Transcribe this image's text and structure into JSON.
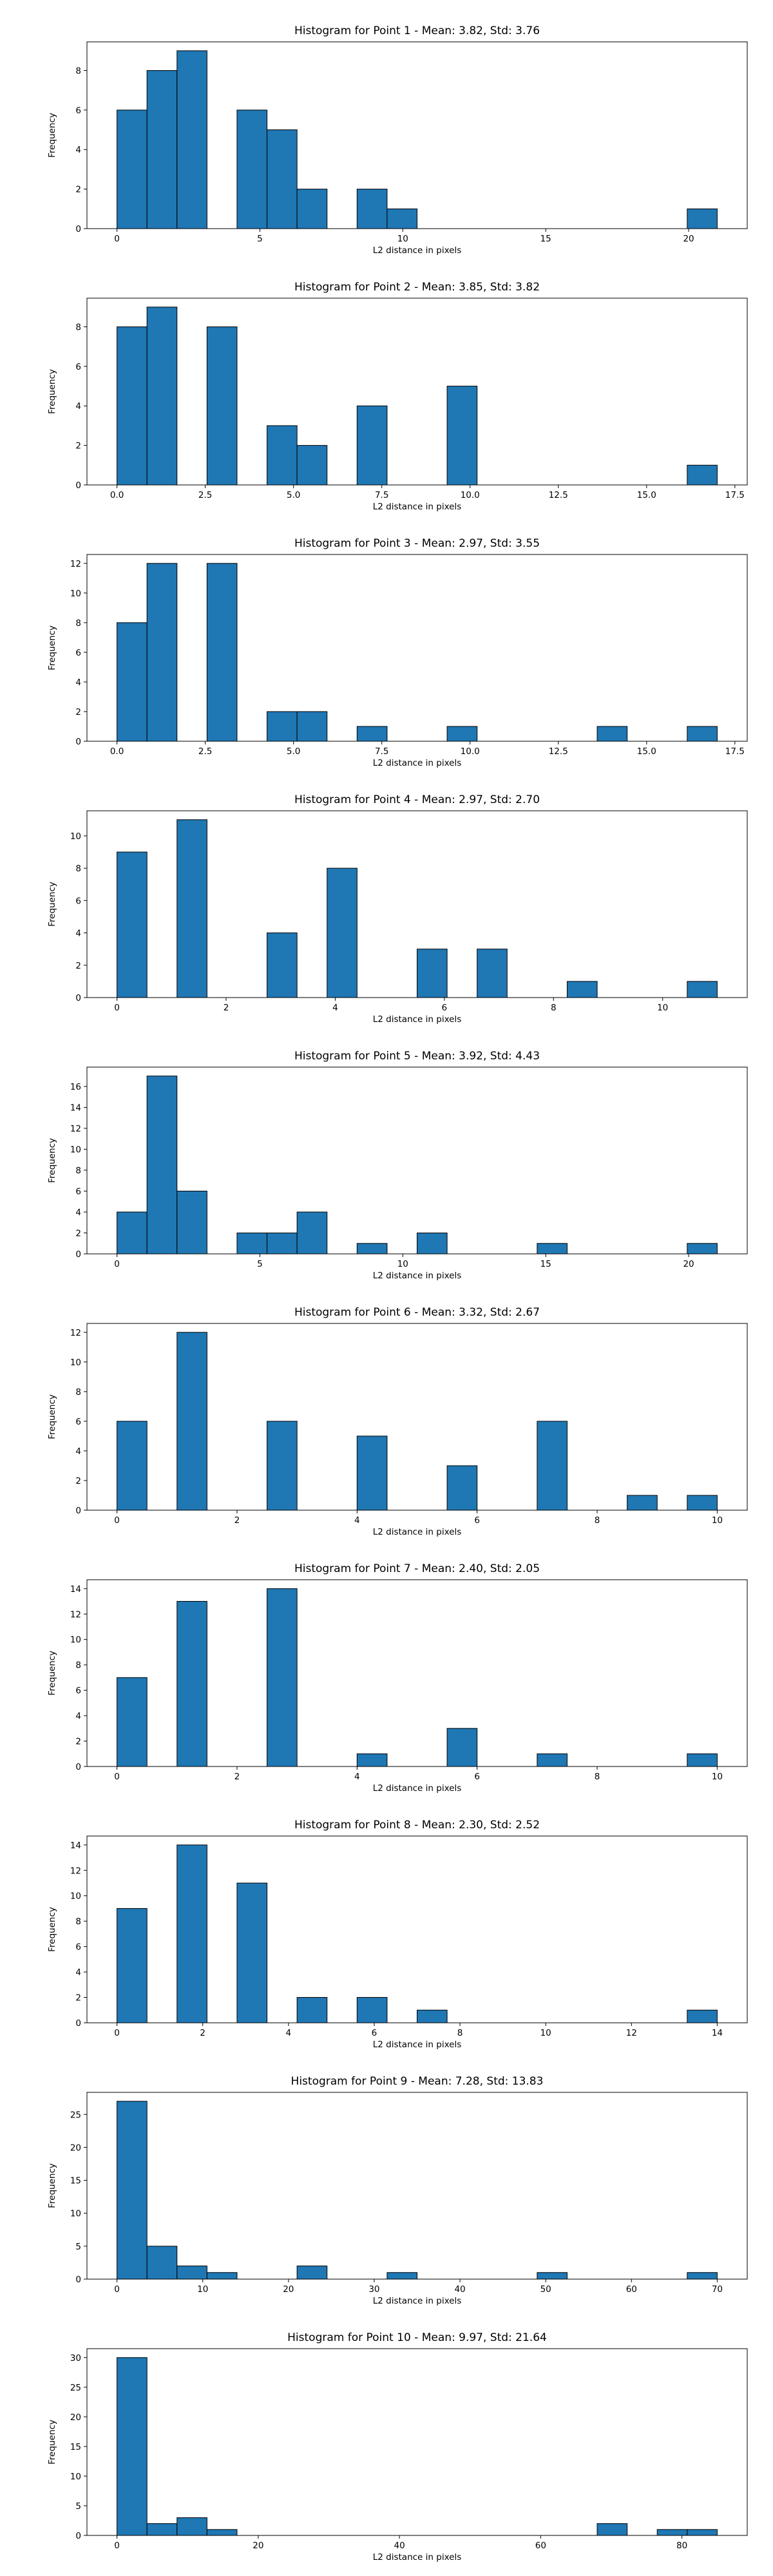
{
  "chart_data": [
    {
      "type": "bar",
      "title": "Histogram for Point 1 - Mean: 3.82, Std: 3.76",
      "xlabel": "L2 distance in pixels",
      "ylabel": "Frequency",
      "xlim": [
        -1.05,
        22.05
      ],
      "ylim": [
        0,
        9.45
      ],
      "xticks": [
        "0",
        "5",
        "10",
        "15",
        "20"
      ],
      "xtick_values": [
        0,
        5,
        10,
        15,
        20
      ],
      "yticks": [
        "0",
        "2",
        "4",
        "6",
        "8"
      ],
      "ytick_values": [
        0,
        2,
        4,
        6,
        8
      ],
      "bins": [
        [
          0,
          1.05,
          6
        ],
        [
          1.05,
          2.1,
          8
        ],
        [
          2.1,
          3.15,
          9
        ],
        [
          4.2,
          5.25,
          6
        ],
        [
          5.25,
          6.3,
          5
        ],
        [
          6.3,
          7.35,
          2
        ],
        [
          8.4,
          9.45,
          2
        ],
        [
          9.45,
          10.5,
          1
        ],
        [
          19.95,
          21.0,
          1
        ]
      ]
    },
    {
      "type": "bar",
      "title": "Histogram for Point 2 - Mean: 3.85, Std: 3.82",
      "xlabel": "L2 distance in pixels",
      "ylabel": "Frequency",
      "xlim": [
        -0.85,
        17.85
      ],
      "ylim": [
        0,
        9.45
      ],
      "xticks": [
        "0.0",
        "2.5",
        "5.0",
        "7.5",
        "10.0",
        "12.5",
        "15.0",
        "17.5"
      ],
      "xtick_values": [
        0,
        2.5,
        5,
        7.5,
        10,
        12.5,
        15,
        17.5
      ],
      "yticks": [
        "0",
        "2",
        "4",
        "6",
        "8"
      ],
      "ytick_values": [
        0,
        2,
        4,
        6,
        8
      ],
      "bins": [
        [
          0,
          0.85,
          8
        ],
        [
          0.85,
          1.7,
          9
        ],
        [
          2.55,
          3.4,
          8
        ],
        [
          4.25,
          5.1,
          3
        ],
        [
          5.1,
          5.95,
          2
        ],
        [
          6.8,
          7.65,
          4
        ],
        [
          9.35,
          10.2,
          5
        ],
        [
          16.15,
          17.0,
          1
        ]
      ]
    },
    {
      "type": "bar",
      "title": "Histogram for Point 3 - Mean: 2.97, Std: 3.55",
      "xlabel": "L2 distance in pixels",
      "ylabel": "Frequency",
      "xlim": [
        -0.85,
        17.85
      ],
      "ylim": [
        0,
        12.6
      ],
      "xticks": [
        "0.0",
        "2.5",
        "5.0",
        "7.5",
        "10.0",
        "12.5",
        "15.0",
        "17.5"
      ],
      "xtick_values": [
        0,
        2.5,
        5,
        7.5,
        10,
        12.5,
        15,
        17.5
      ],
      "yticks": [
        "0",
        "2",
        "4",
        "6",
        "8",
        "10",
        "12"
      ],
      "ytick_values": [
        0,
        2,
        4,
        6,
        8,
        10,
        12
      ],
      "bins": [
        [
          0,
          0.85,
          8
        ],
        [
          0.85,
          1.7,
          12
        ],
        [
          2.55,
          3.4,
          12
        ],
        [
          4.25,
          5.1,
          2
        ],
        [
          5.1,
          5.95,
          2
        ],
        [
          6.8,
          7.65,
          1
        ],
        [
          9.35,
          10.2,
          1
        ],
        [
          13.6,
          14.45,
          1
        ],
        [
          16.15,
          17.0,
          1
        ]
      ]
    },
    {
      "type": "bar",
      "title": "Histogram for Point 4 - Mean: 2.97, Std: 2.70",
      "xlabel": "L2 distance in pixels",
      "ylabel": "Frequency",
      "xlim": [
        -0.55,
        11.55
      ],
      "ylim": [
        0,
        11.55
      ],
      "xticks": [
        "0",
        "2",
        "4",
        "6",
        "8",
        "10"
      ],
      "xtick_values": [
        0,
        2,
        4,
        6,
        8,
        10
      ],
      "yticks": [
        "0",
        "2",
        "4",
        "6",
        "8",
        "10"
      ],
      "ytick_values": [
        0,
        2,
        4,
        6,
        8,
        10
      ],
      "bins": [
        [
          0,
          0.55,
          9
        ],
        [
          1.1,
          1.65,
          11
        ],
        [
          2.75,
          3.3,
          4
        ],
        [
          3.85,
          4.4,
          8
        ],
        [
          5.5,
          6.05,
          3
        ],
        [
          6.6,
          7.15,
          3
        ],
        [
          8.25,
          8.8,
          1
        ],
        [
          10.45,
          11.0,
          1
        ]
      ]
    },
    {
      "type": "bar",
      "title": "Histogram for Point 5 - Mean: 3.92, Std: 4.43",
      "xlabel": "L2 distance in pixels",
      "ylabel": "Frequency",
      "xlim": [
        -1.05,
        22.05
      ],
      "ylim": [
        0,
        17.85
      ],
      "xticks": [
        "0",
        "5",
        "10",
        "15",
        "20"
      ],
      "xtick_values": [
        0,
        5,
        10,
        15,
        20
      ],
      "yticks": [
        "0",
        "2",
        "4",
        "6",
        "8",
        "10",
        "12",
        "14",
        "16"
      ],
      "ytick_values": [
        0,
        2,
        4,
        6,
        8,
        10,
        12,
        14,
        16
      ],
      "bins": [
        [
          0,
          1.05,
          4
        ],
        [
          1.05,
          2.1,
          17
        ],
        [
          2.1,
          3.15,
          6
        ],
        [
          4.2,
          5.25,
          2
        ],
        [
          5.25,
          6.3,
          2
        ],
        [
          6.3,
          7.35,
          4
        ],
        [
          8.4,
          9.45,
          1
        ],
        [
          10.5,
          11.55,
          2
        ],
        [
          14.7,
          15.75,
          1
        ],
        [
          19.95,
          21.0,
          1
        ]
      ]
    },
    {
      "type": "bar",
      "title": "Histogram for Point 6 - Mean: 3.32, Std: 2.67",
      "xlabel": "L2 distance in pixels",
      "ylabel": "Frequency",
      "xlim": [
        -0.5,
        10.5
      ],
      "ylim": [
        0,
        12.6
      ],
      "xticks": [
        "0",
        "2",
        "4",
        "6",
        "8",
        "10"
      ],
      "xtick_values": [
        0,
        2,
        4,
        6,
        8,
        10
      ],
      "yticks": [
        "0",
        "2",
        "4",
        "6",
        "8",
        "10",
        "12"
      ],
      "ytick_values": [
        0,
        2,
        4,
        6,
        8,
        10,
        12
      ],
      "bins": [
        [
          0,
          0.5,
          6
        ],
        [
          1.0,
          1.5,
          12
        ],
        [
          2.5,
          3.0,
          6
        ],
        [
          4.0,
          4.5,
          5
        ],
        [
          5.5,
          6.0,
          3
        ],
        [
          7.0,
          7.5,
          6
        ],
        [
          8.5,
          9.0,
          1
        ],
        [
          9.5,
          10.0,
          1
        ]
      ]
    },
    {
      "type": "bar",
      "title": "Histogram for Point 7 - Mean: 2.40, Std: 2.05",
      "xlabel": "L2 distance in pixels",
      "ylabel": "Frequency",
      "xlim": [
        -0.5,
        10.5
      ],
      "ylim": [
        0,
        14.7
      ],
      "xticks": [
        "0",
        "2",
        "4",
        "6",
        "8",
        "10"
      ],
      "xtick_values": [
        0,
        2,
        4,
        6,
        8,
        10
      ],
      "yticks": [
        "0",
        "2",
        "4",
        "6",
        "8",
        "10",
        "12",
        "14"
      ],
      "ytick_values": [
        0,
        2,
        4,
        6,
        8,
        10,
        12,
        14
      ],
      "bins": [
        [
          0,
          0.5,
          7
        ],
        [
          1.0,
          1.5,
          13
        ],
        [
          2.5,
          3.0,
          14
        ],
        [
          4.0,
          4.5,
          1
        ],
        [
          5.5,
          6.0,
          3
        ],
        [
          7.0,
          7.5,
          1
        ],
        [
          9.5,
          10.0,
          1
        ]
      ]
    },
    {
      "type": "bar",
      "title": "Histogram for Point 8 - Mean: 2.30, Std: 2.52",
      "xlabel": "L2 distance in pixels",
      "ylabel": "Frequency",
      "xlim": [
        -0.7,
        14.7
      ],
      "ylim": [
        0,
        14.7
      ],
      "xticks": [
        "0",
        "2",
        "4",
        "6",
        "8",
        "10",
        "12",
        "14"
      ],
      "xtick_values": [
        0,
        2,
        4,
        6,
        8,
        10,
        12,
        14
      ],
      "yticks": [
        "0",
        "2",
        "4",
        "6",
        "8",
        "10",
        "12",
        "14"
      ],
      "ytick_values": [
        0,
        2,
        4,
        6,
        8,
        10,
        12,
        14
      ],
      "bins": [
        [
          0,
          0.7,
          9
        ],
        [
          1.4,
          2.1,
          14
        ],
        [
          2.8,
          3.5,
          11
        ],
        [
          4.2,
          4.9,
          2
        ],
        [
          5.6,
          6.3,
          2
        ],
        [
          7.0,
          7.7,
          1
        ],
        [
          13.3,
          14.0,
          1
        ]
      ]
    },
    {
      "type": "bar",
      "title": "Histogram for Point 9 - Mean: 7.28, Std: 13.83",
      "xlabel": "L2 distance in pixels",
      "ylabel": "Frequency",
      "xlim": [
        -3.5,
        73.5
      ],
      "ylim": [
        0,
        28.35
      ],
      "xticks": [
        "0",
        "10",
        "20",
        "30",
        "40",
        "50",
        "60",
        "70"
      ],
      "xtick_values": [
        0,
        10,
        20,
        30,
        40,
        50,
        60,
        70
      ],
      "yticks": [
        "0",
        "5",
        "10",
        "15",
        "20",
        "25"
      ],
      "ytick_values": [
        0,
        5,
        10,
        15,
        20,
        25
      ],
      "bins": [
        [
          0,
          3.5,
          27
        ],
        [
          3.5,
          7.0,
          5
        ],
        [
          7.0,
          10.5,
          2
        ],
        [
          10.5,
          14.0,
          1
        ],
        [
          21.0,
          24.5,
          2
        ],
        [
          31.5,
          35.0,
          1
        ],
        [
          49.0,
          52.5,
          1
        ],
        [
          66.5,
          70.0,
          1
        ]
      ]
    },
    {
      "type": "bar",
      "title": "Histogram for Point 10 - Mean: 9.97, Std: 21.64",
      "xlabel": "L2 distance in pixels",
      "ylabel": "Frequency",
      "xlim": [
        -4.25,
        89.25
      ],
      "ylim": [
        0,
        31.5
      ],
      "xticks": [
        "0",
        "20",
        "40",
        "60",
        "80"
      ],
      "xtick_values": [
        0,
        20,
        40,
        60,
        80
      ],
      "yticks": [
        "0",
        "5",
        "10",
        "15",
        "20",
        "25",
        "30"
      ],
      "ytick_values": [
        0,
        5,
        10,
        15,
        20,
        25,
        30
      ],
      "bins": [
        [
          0,
          4.25,
          30
        ],
        [
          4.25,
          8.5,
          2
        ],
        [
          8.5,
          12.75,
          3
        ],
        [
          12.75,
          17.0,
          1
        ],
        [
          68.0,
          72.25,
          2
        ],
        [
          76.5,
          80.75,
          1
        ],
        [
          80.75,
          85.0,
          1
        ]
      ]
    }
  ]
}
